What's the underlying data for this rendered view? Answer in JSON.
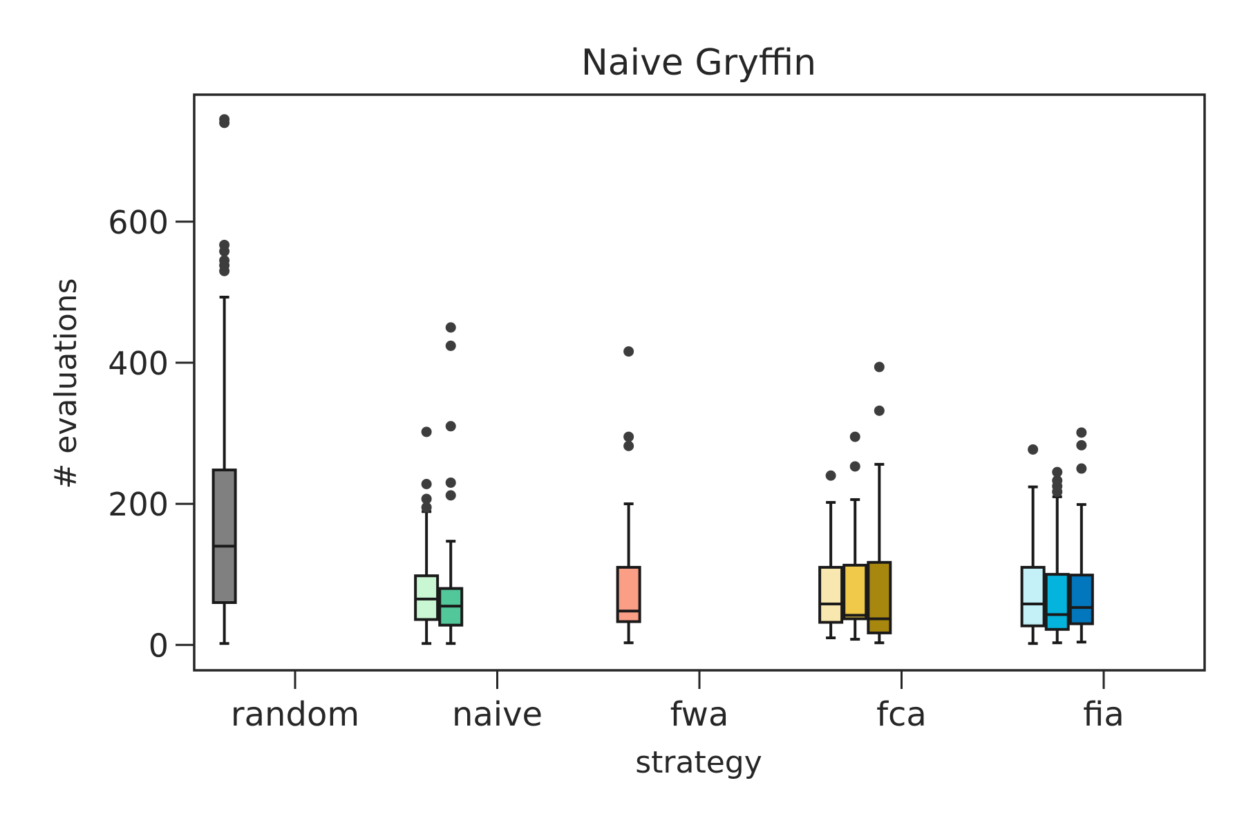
{
  "chart_data": {
    "type": "box",
    "title": "Naive Gryffin",
    "xlabel": "strategy",
    "ylabel": "# evaluations",
    "ylim": [
      -36,
      780
    ],
    "yticks": [
      0,
      200,
      400,
      600
    ],
    "grid": false,
    "legend": "none",
    "categories": [
      "random",
      "naive",
      "fwa",
      "fca",
      "fia"
    ],
    "boxes": [
      {
        "category": "random",
        "slot": -0.35,
        "color": "#808080",
        "whisker_low": 2,
        "q1": 60,
        "median": 140,
        "q3": 248,
        "whisker_high": 493,
        "outliers": [
          530,
          538,
          545,
          558,
          567,
          740,
          745
        ]
      },
      {
        "category": "naive",
        "slot": -0.35,
        "color": "#c9f7d3",
        "whisker_low": 2,
        "q1": 36,
        "median": 65,
        "q3": 98,
        "whisker_high": 189,
        "outliers": [
          195,
          207,
          228,
          302
        ]
      },
      {
        "category": "naive",
        "slot": -0.23,
        "color": "#52c79a",
        "whisker_low": 2,
        "q1": 28,
        "median": 55,
        "q3": 80,
        "whisker_high": 147,
        "outliers": [
          212,
          230,
          310,
          424,
          450
        ]
      },
      {
        "category": "fwa",
        "slot": -0.35,
        "color": "#fb9e86",
        "whisker_low": 3,
        "q1": 33,
        "median": 48,
        "q3": 110,
        "whisker_high": 200,
        "outliers": [
          282,
          295,
          416
        ]
      },
      {
        "category": "fca",
        "slot": -0.35,
        "color": "#f9e7b0",
        "whisker_low": 10,
        "q1": 32,
        "median": 58,
        "q3": 110,
        "whisker_high": 202,
        "outliers": [
          240
        ]
      },
      {
        "category": "fca",
        "slot": -0.23,
        "color": "#f0c94a",
        "whisker_low": 8,
        "q1": 37,
        "median": 42,
        "q3": 113,
        "whisker_high": 206,
        "outliers": [
          253,
          295
        ]
      },
      {
        "category": "fca",
        "slot": -0.11,
        "color": "#a8870f",
        "whisker_low": 3,
        "q1": 17,
        "median": 37,
        "q3": 117,
        "whisker_high": 256,
        "outliers": [
          332,
          394
        ]
      },
      {
        "category": "fia",
        "slot": -0.35,
        "color": "#c4f0f7",
        "whisker_low": 2,
        "q1": 27,
        "median": 58,
        "q3": 110,
        "whisker_high": 224,
        "outliers": [
          277
        ]
      },
      {
        "category": "fia",
        "slot": -0.23,
        "color": "#05b4dc",
        "whisker_low": 3,
        "q1": 22,
        "median": 43,
        "q3": 100,
        "whisker_high": 210,
        "outliers": [
          217,
          225,
          233,
          245
        ]
      },
      {
        "category": "fia",
        "slot": -0.11,
        "color": "#0277be",
        "whisker_low": 4,
        "q1": 30,
        "median": 53,
        "q3": 99,
        "whisker_high": 199,
        "outliers": [
          250,
          283,
          301
        ]
      }
    ]
  }
}
